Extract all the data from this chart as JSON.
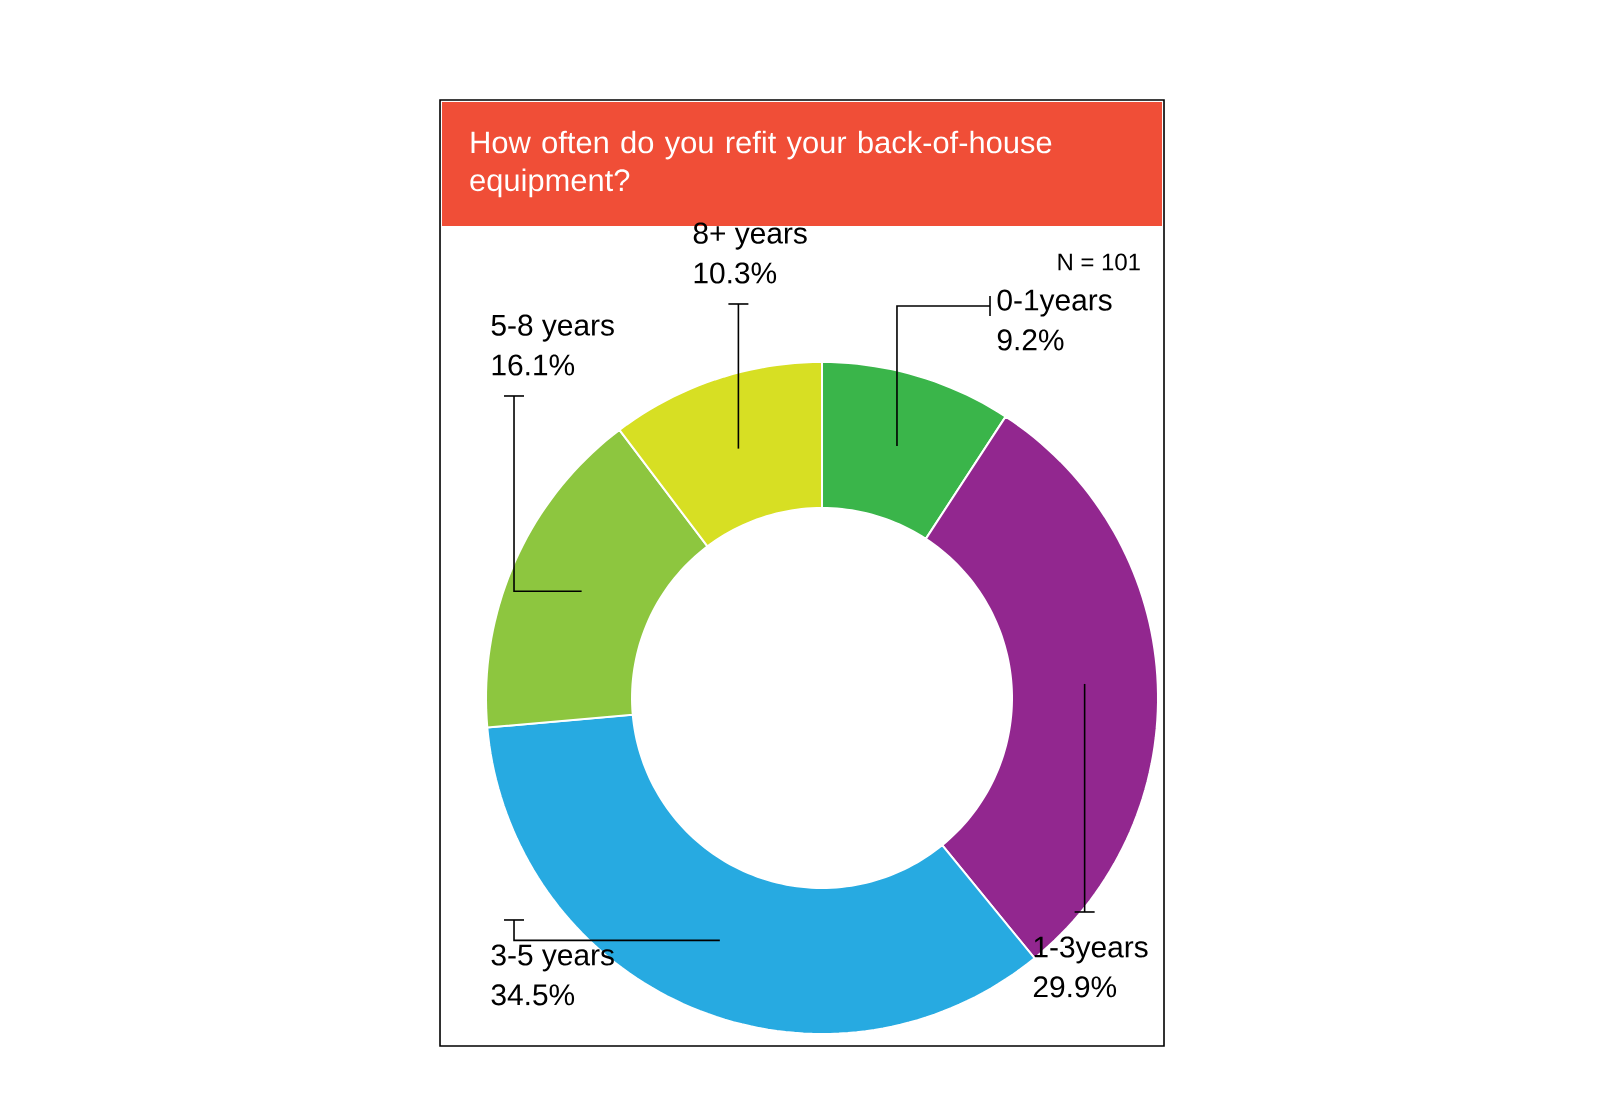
{
  "chart_data": {
    "type": "donut",
    "title": "How often do you refit your back-of-house equipment?",
    "categories": [
      "0-1years",
      "1-3years",
      "3-5 years",
      "5-8 years",
      "8+ years"
    ],
    "values": [
      9.2,
      29.9,
      34.5,
      16.1,
      10.3
    ],
    "colors": [
      "#3ab54a",
      "#92278f",
      "#27aae1",
      "#8dc63f",
      "#d7df23"
    ],
    "value_labels": [
      "9.2%",
      "29.9%",
      "34.5%",
      "16.1%",
      "10.3%"
    ],
    "annotations": [
      "N = 101"
    ]
  }
}
